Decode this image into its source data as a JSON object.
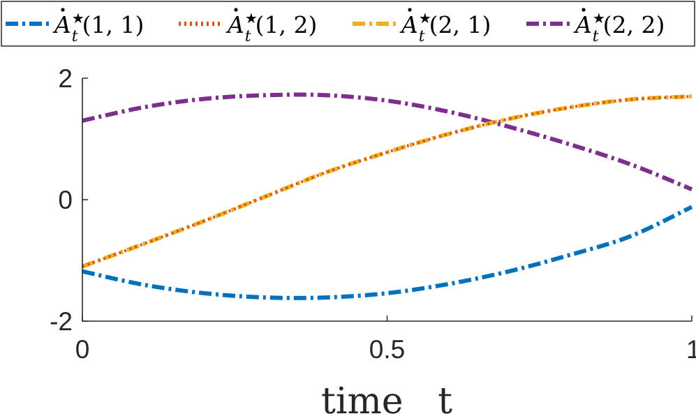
{
  "chart_data": {
    "type": "line",
    "title": "",
    "xlabel": "time   t",
    "ylabel": "",
    "xlim": [
      0,
      1
    ],
    "ylim": [
      -2,
      2
    ],
    "xticks": [
      0,
      0.5,
      1
    ],
    "xtick_labels": [
      "0",
      "0.5",
      "1"
    ],
    "yticks": [
      -2,
      0,
      2
    ],
    "ytick_labels": [
      "-2",
      "0",
      "2"
    ],
    "grid": false,
    "legend_position": "top",
    "x": [
      0,
      0.1,
      0.2,
      0.3,
      0.4,
      0.5,
      0.6,
      0.7,
      0.8,
      0.9,
      1.0
    ],
    "series": [
      {
        "name": "Ȧ*_t(1,1)",
        "label_base": "A",
        "label_args": "(1, 1)",
        "color": "#0072BD",
        "dash": "dashdot",
        "values": [
          -1.18,
          -1.4,
          -1.54,
          -1.61,
          -1.61,
          -1.54,
          -1.39,
          -1.18,
          -0.91,
          -0.6,
          -0.12
        ]
      },
      {
        "name": "Ȧ*_t(1,2)",
        "label_base": "A",
        "label_args": "(1, 2)",
        "color": "#D95319",
        "dash": "dot",
        "values": [
          -1.1,
          -0.73,
          -0.35,
          0.05,
          0.45,
          0.78,
          1.08,
          1.33,
          1.52,
          1.65,
          1.7
        ]
      },
      {
        "name": "Ȧ*_t(2,1)",
        "label_base": "A",
        "label_args": "(2, 1)",
        "color": "#EDB120",
        "dash": "dashdot",
        "values": [
          -1.1,
          -0.73,
          -0.35,
          0.05,
          0.45,
          0.78,
          1.08,
          1.33,
          1.52,
          1.65,
          1.7
        ]
      },
      {
        "name": "Ȧ*_t(2,2)",
        "label_base": "A",
        "label_args": "(2, 2)",
        "color": "#7E2F8E",
        "dash": "dashdot",
        "values": [
          1.3,
          1.52,
          1.66,
          1.72,
          1.72,
          1.63,
          1.45,
          1.2,
          0.91,
          0.58,
          0.17
        ]
      }
    ]
  }
}
